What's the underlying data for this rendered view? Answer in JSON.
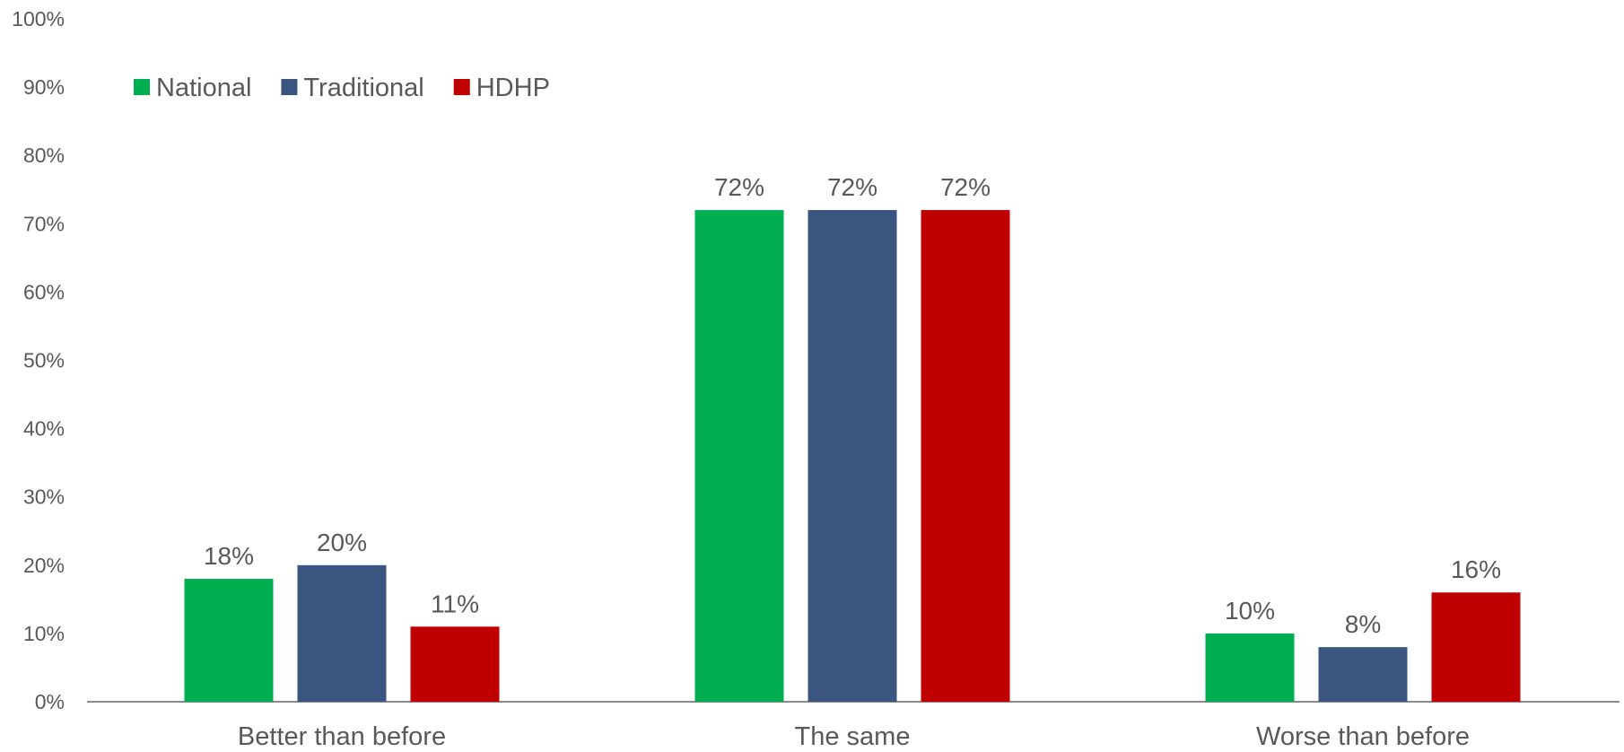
{
  "chart_data": {
    "type": "bar",
    "title": "",
    "xlabel": "",
    "ylabel": "",
    "ylim": [
      0,
      100
    ],
    "y_ticks": [
      "0%",
      "10%",
      "20%",
      "30%",
      "40%",
      "50%",
      "60%",
      "70%",
      "80%",
      "90%",
      "100%"
    ],
    "categories": [
      "Better than before",
      "The same",
      "Worse than before"
    ],
    "series": [
      {
        "name": "National",
        "color": "#00B050",
        "values": [
          18,
          72,
          10
        ],
        "labels": [
          "18%",
          "72%",
          "10%"
        ]
      },
      {
        "name": "Traditional",
        "color": "#3A557F",
        "values": [
          20,
          72,
          8
        ],
        "labels": [
          "20%",
          "72%",
          "8%"
        ]
      },
      {
        "name": "HDHP",
        "color": "#C00000",
        "values": [
          11,
          72,
          16
        ],
        "labels": [
          "11%",
          "72%",
          "16%"
        ]
      }
    ],
    "grid": false,
    "legend_position": "top-left"
  }
}
